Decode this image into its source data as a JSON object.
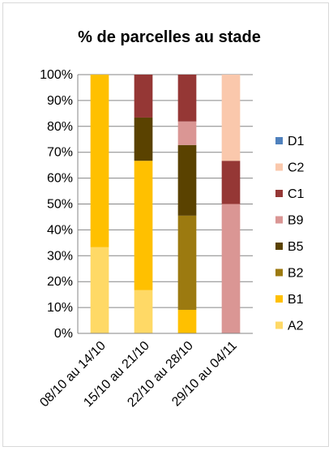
{
  "chart_data": {
    "type": "bar",
    "stacked": true,
    "percent": true,
    "title": "% de parcelles au stade",
    "categories": [
      "08/10 au 14/10",
      "15/10 au 21/10",
      "22/10 au 28/10",
      "29/10 au 04/11"
    ],
    "y_ticks": [
      "0%",
      "10%",
      "20%",
      "30%",
      "40%",
      "50%",
      "60%",
      "70%",
      "80%",
      "90%",
      "100%"
    ],
    "ylim": [
      0,
      100
    ],
    "grid": true,
    "legend": "right",
    "series": [
      {
        "name": "A2",
        "color": "#FFD966",
        "values": [
          33.3,
          16.7,
          0,
          0
        ]
      },
      {
        "name": "B1",
        "color": "#FFC000",
        "values": [
          66.7,
          50,
          9.1,
          0
        ]
      },
      {
        "name": "B2",
        "color": "#9C7A10",
        "values": [
          0,
          0,
          36.4,
          0
        ]
      },
      {
        "name": "B5",
        "color": "#5A4200",
        "values": [
          0,
          16.7,
          27.3,
          0
        ]
      },
      {
        "name": "B9",
        "color": "#DA9694",
        "values": [
          0,
          0,
          9.1,
          50
        ]
      },
      {
        "name": "C1",
        "color": "#953735",
        "values": [
          0,
          16.6,
          18.1,
          16.7
        ]
      },
      {
        "name": "C2",
        "color": "#FAC8AC",
        "values": [
          0,
          0,
          0,
          33.3
        ]
      },
      {
        "name": "D1",
        "color": "#4F81BD",
        "values": [
          0,
          0,
          0,
          0
        ]
      }
    ]
  }
}
